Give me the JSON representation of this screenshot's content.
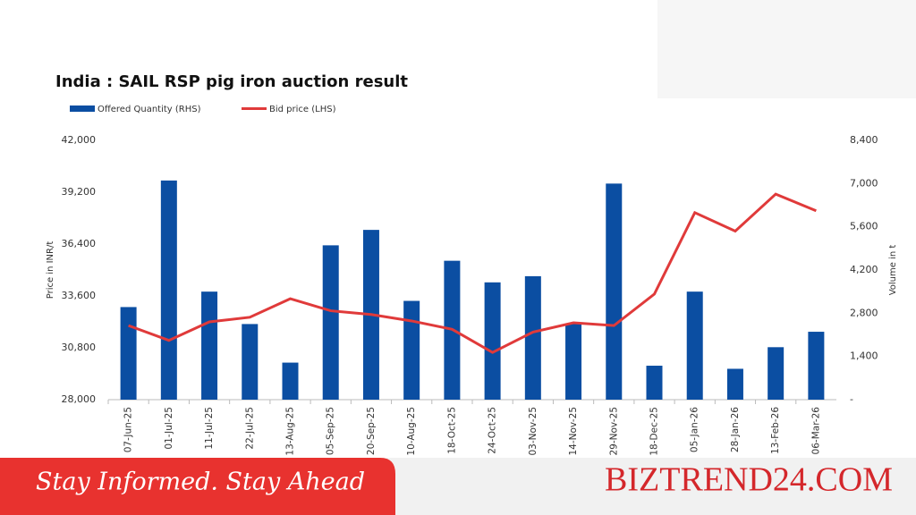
{
  "chart_data": {
    "type": "combo",
    "title": "India : SAIL RSP pig iron auction result",
    "ylabel": "Price in INR/t",
    "y2label": "Volume in t",
    "categories": [
      "07-Jun-25",
      "01-Jul-25",
      "11-Jul-25",
      "22-Jul-25",
      "13-Aug-25",
      "05-Sep-25",
      "20-Sep-25",
      "10-Aug-25",
      "18-Oct-25",
      "24-Oct-25",
      "03-Nov-25",
      "14-Nov-25",
      "29-Nov-25",
      "18-Dec-25",
      "05-Jan-26",
      "28-Jan-26",
      "13-Feb-26",
      "06-Mar-26"
    ],
    "series": [
      {
        "name": "Offered Quantity (RHS)",
        "type": "bar",
        "axis": "y2",
        "color": "#0b4ea2",
        "values": [
          3000,
          7100,
          3500,
          2450,
          1200,
          5000,
          5500,
          3200,
          4500,
          3800,
          4000,
          2450,
          7000,
          1100,
          3500,
          1000,
          1700,
          2200
        ]
      },
      {
        "name": "Bid price (LHS)",
        "type": "line",
        "color": "#e03a3a",
        "values": [
          32000,
          31200,
          32200,
          32450,
          33450,
          32800,
          32600,
          32250,
          31800,
          30550,
          31650,
          32150,
          32000,
          33700,
          38100,
          37100,
          39100,
          38200
        ]
      }
    ],
    "ylim": [
      28000,
      42000
    ],
    "yticks": [
      {
        "value": 28000,
        "label": "28,000"
      },
      {
        "value": 30800,
        "label": "30,800"
      },
      {
        "value": 33600,
        "label": "33,600"
      },
      {
        "value": 36400,
        "label": "36,400"
      },
      {
        "value": 39200,
        "label": "39,200"
      },
      {
        "value": 42000,
        "label": "42,000"
      }
    ],
    "y2lim": [
      0,
      8400
    ],
    "y2ticks": [
      {
        "value": 0,
        "label": "-"
      },
      {
        "value": 1400,
        "label": "1,400"
      },
      {
        "value": 2800,
        "label": "2,800"
      },
      {
        "value": 4200,
        "label": "4,200"
      },
      {
        "value": 5600,
        "label": "5,600"
      },
      {
        "value": 7000,
        "label": "7,000"
      },
      {
        "value": 8400,
        "label": "8,400"
      }
    ],
    "grid": false,
    "legend": "top-left"
  },
  "banner": {
    "tagline": "Stay Informed. Stay Ahead",
    "brand": "BIZTREND24.COM"
  }
}
